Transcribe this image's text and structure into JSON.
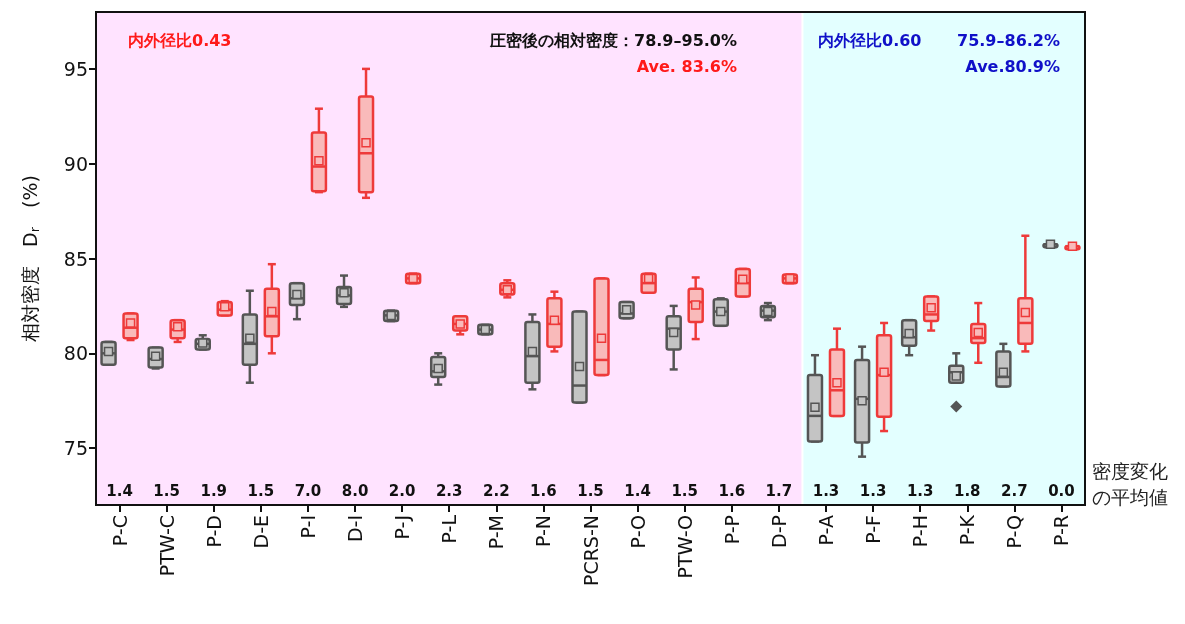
{
  "chart_data": {
    "type": "box",
    "ylabel": "相対密度　D$_{r}$　(%)",
    "categories": [
      "P-C",
      "PTW-C",
      "P-D",
      "D-E",
      "P-I",
      "D-I",
      "P-J",
      "P-L",
      "P-M",
      "P-N",
      "PCRS-N",
      "P-O",
      "PTW-O",
      "P-P",
      "D-P",
      "P-A",
      "P-F",
      "P-H",
      "P-K",
      "P-Q",
      "P-R"
    ],
    "ylim": [
      72,
      98
    ],
    "yticks": [
      75,
      80,
      85,
      90,
      95
    ],
    "grid": false,
    "series": [
      {
        "color": "#555555",
        "boxes": [
          {
            "low": 79.4,
            "q1": 79.4,
            "median": 80.0,
            "q3": 80.6,
            "high": 80.6,
            "mean": 80.1
          },
          {
            "low": 79.2,
            "q1": 79.25,
            "median": 79.7,
            "q3": 80.3,
            "high": 80.3,
            "mean": 79.85
          },
          {
            "low": 80.2,
            "q1": 80.2,
            "median": 80.5,
            "q3": 80.75,
            "high": 80.95,
            "mean": 80.55
          },
          {
            "low": 78.45,
            "q1": 79.4,
            "median": 80.5,
            "q3": 82.05,
            "high": 83.3,
            "mean": 80.8
          },
          {
            "low": 81.8,
            "q1": 82.55,
            "median": 82.9,
            "q3": 83.7,
            "high": 83.7,
            "mean": 83.1
          },
          {
            "low": 82.45,
            "q1": 82.6,
            "median": 83.05,
            "q3": 83.5,
            "high": 84.1,
            "mean": 83.2
          },
          {
            "low": 81.7,
            "q1": 81.7,
            "median": 82.0,
            "q3": 82.25,
            "high": 82.25,
            "mean": 82.0
          },
          {
            "low": 78.35,
            "q1": 78.75,
            "median": 79.05,
            "q3": 79.8,
            "high": 80.0,
            "mean": 79.2
          },
          {
            "low": 81.0,
            "q1": 81.0,
            "median": 81.25,
            "q3": 81.5,
            "high": 81.5,
            "mean": 81.25
          },
          {
            "low": 78.1,
            "q1": 78.45,
            "median": 79.85,
            "q3": 81.65,
            "high": 82.05,
            "mean": 80.1
          },
          {
            "low": 77.4,
            "q1": 77.4,
            "median": 78.3,
            "q3": 82.2,
            "high": 82.2,
            "mean": 79.3
          },
          {
            "low": 81.85,
            "q1": 81.85,
            "median": 82.1,
            "q3": 82.7,
            "high": 82.7,
            "mean": 82.3
          },
          {
            "low": 79.15,
            "q1": 80.2,
            "median": 81.3,
            "q3": 81.95,
            "high": 82.5,
            "mean": 81.1
          },
          {
            "low": 81.45,
            "q1": 81.45,
            "median": 82.2,
            "q3": 82.85,
            "high": 82.9,
            "mean": 82.2
          },
          {
            "low": 81.75,
            "q1": 81.9,
            "median": 82.25,
            "q3": 82.5,
            "high": 82.65,
            "mean": 82.2
          },
          {
            "low": 75.35,
            "q1": 75.35,
            "median": 76.7,
            "q3": 78.85,
            "high": 79.9,
            "mean": 77.15
          },
          {
            "low": 74.55,
            "q1": 75.3,
            "median": 77.6,
            "q3": 79.65,
            "high": 80.35,
            "mean": 77.5
          },
          {
            "low": 79.9,
            "q1": 80.4,
            "median": 80.85,
            "q3": 81.75,
            "high": 81.75,
            "mean": 81.05
          },
          {
            "low": 78.45,
            "q1": 78.45,
            "median": 79.0,
            "q3": 79.35,
            "high": 80.0,
            "mean": 78.8,
            "outliers": [
              77.2
            ]
          },
          {
            "low": 78.25,
            "q1": 78.25,
            "median": 78.75,
            "q3": 80.1,
            "high": 80.5,
            "mean": 79.0
          },
          {
            "low": 85.75,
            "q1": 85.75,
            "median": 85.75,
            "q3": 85.75,
            "high": 85.75,
            "mean": 85.75
          }
        ]
      },
      {
        "color": "#ee3a3a",
        "boxes": [
          {
            "low": 80.7,
            "q1": 80.8,
            "median": 81.35,
            "q3": 82.1,
            "high": 82.1,
            "mean": 81.6
          },
          {
            "low": 80.6,
            "q1": 80.8,
            "median": 81.25,
            "q3": 81.75,
            "high": 81.75,
            "mean": 81.4
          },
          {
            "low": 82.0,
            "q1": 82.0,
            "median": 82.3,
            "q3": 82.7,
            "high": 82.75,
            "mean": 82.45
          },
          {
            "low": 80.0,
            "q1": 80.9,
            "median": 81.95,
            "q3": 83.4,
            "high": 84.7,
            "mean": 82.2
          },
          {
            "low": 88.5,
            "q1": 88.55,
            "median": 89.85,
            "q3": 91.65,
            "high": 92.9,
            "mean": 90.15
          },
          {
            "low": 88.2,
            "q1": 88.5,
            "median": 90.55,
            "q3": 93.55,
            "high": 95.0,
            "mean": 91.1
          },
          {
            "low": 83.7,
            "q1": 83.7,
            "median": 83.95,
            "q3": 84.2,
            "high": 84.2,
            "mean": 83.95
          },
          {
            "low": 81.0,
            "q1": 81.2,
            "median": 81.55,
            "q3": 81.95,
            "high": 81.95,
            "mean": 81.55
          },
          {
            "low": 82.95,
            "q1": 83.1,
            "median": 83.35,
            "q3": 83.7,
            "high": 83.85,
            "mean": 83.35
          },
          {
            "low": 80.1,
            "q1": 80.35,
            "median": 81.55,
            "q3": 82.9,
            "high": 83.25,
            "mean": 81.75
          },
          {
            "low": 78.85,
            "q1": 78.85,
            "median": 79.65,
            "q3": 83.95,
            "high": 83.95,
            "mean": 80.8
          },
          {
            "low": 83.2,
            "q1": 83.2,
            "median": 83.7,
            "q3": 84.2,
            "high": 84.2,
            "mean": 83.95
          },
          {
            "low": 80.75,
            "q1": 81.65,
            "median": 82.7,
            "q3": 83.4,
            "high": 84.0,
            "mean": 82.55
          },
          {
            "low": 83.0,
            "q1": 83.0,
            "median": 83.7,
            "q3": 84.45,
            "high": 84.45,
            "mean": 83.9
          },
          {
            "low": 83.7,
            "q1": 83.7,
            "median": 83.95,
            "q3": 84.15,
            "high": 84.15,
            "mean": 83.95
          },
          {
            "low": 76.7,
            "q1": 76.7,
            "median": 78.05,
            "q3": 80.2,
            "high": 81.3,
            "mean": 78.45
          },
          {
            "low": 75.9,
            "q1": 76.65,
            "median": 78.85,
            "q3": 80.95,
            "high": 81.6,
            "mean": 79.0
          },
          {
            "low": 81.2,
            "q1": 81.7,
            "median": 82.05,
            "q3": 83.0,
            "high": 83.0,
            "mean": 82.4
          },
          {
            "low": 79.5,
            "q1": 80.55,
            "median": 80.8,
            "q3": 81.55,
            "high": 82.65,
            "mean": 81.1
          },
          {
            "low": 80.1,
            "q1": 80.5,
            "median": 81.6,
            "q3": 82.9,
            "high": 86.2,
            "mean": 82.15
          },
          {
            "low": 85.65,
            "q1": 85.65,
            "median": 85.65,
            "q3": 85.65,
            "high": 85.65,
            "mean": 85.65
          }
        ]
      }
    ],
    "bands": [
      {
        "axis": "x",
        "from": "P-C",
        "to": "D-P",
        "color": "#ffe3ff"
      },
      {
        "axis": "x",
        "from": "P-A",
        "to": "P-R",
        "color": "#e3ffff"
      }
    ],
    "annotations": [
      "内外径比0.43",
      "圧密後の相対密度：78.9–95.0%",
      "Ave. 83.6%",
      "内外径比0.60",
      "75.9–86.2%",
      "Ave.80.9%",
      "密度変化の平均値",
      "1.4",
      "1.5",
      "1.9",
      "1.5",
      "7.0",
      "8.0",
      "2.0",
      "2.3",
      "2.2",
      "1.6",
      "1.5",
      "1.4",
      "1.5",
      "1.6",
      "1.7",
      "1.3",
      "1.3",
      "1.3",
      "1.8",
      "2.7",
      "0.0"
    ]
  }
}
